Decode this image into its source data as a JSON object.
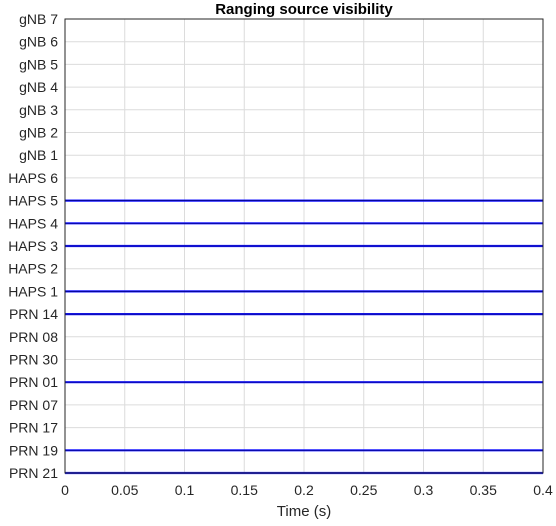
{
  "chart_data": {
    "type": "line",
    "title": "Ranging source visibility",
    "xlabel": "Time (s)",
    "ylabel": "",
    "xlim": [
      0,
      0.4
    ],
    "xticks": [
      0,
      0.05,
      0.1,
      0.15,
      0.2,
      0.25,
      0.3,
      0.35,
      0.4
    ],
    "xtick_labels": [
      "0",
      "0.05",
      "0.1",
      "0.15",
      "0.2",
      "0.25",
      "0.3",
      "0.35",
      "0.4"
    ],
    "grid": true,
    "legend": "none",
    "categories": [
      "gNB 7",
      "gNB 6",
      "gNB 5",
      "gNB 4",
      "gNB 3",
      "gNB 2",
      "gNB 1",
      "HAPS 6",
      "HAPS 5",
      "HAPS 4",
      "HAPS 3",
      "HAPS 2",
      "HAPS 1",
      "PRN 14",
      "PRN 08",
      "PRN 30",
      "PRN 01",
      "PRN 07",
      "PRN 17",
      "PRN 19",
      "PRN 21"
    ],
    "visible": [
      false,
      false,
      false,
      false,
      false,
      false,
      false,
      false,
      true,
      true,
      true,
      false,
      true,
      true,
      false,
      false,
      true,
      false,
      false,
      true,
      true
    ],
    "visible_interval": [
      0,
      0.4
    ],
    "colors": {
      "line": "#1a1aff",
      "grid": "#dcdcdc",
      "axis": "#262626"
    }
  }
}
